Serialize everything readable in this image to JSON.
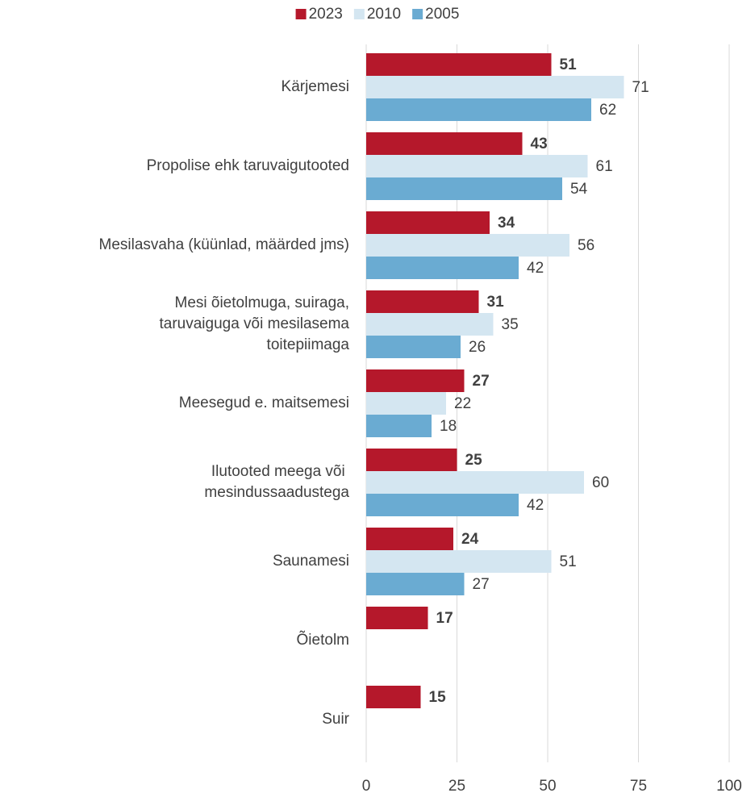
{
  "chart_data": {
    "type": "bar",
    "orientation": "horizontal",
    "categories": [
      "Kärjemesi",
      "Propolise ehk taruvaigutooted",
      "Mesilasvaha (küünlad, määrded jms)",
      "Mesi õietolmuga, suiraga,\ntaruvaiguga või mesilasema\ntoitepiimaga",
      "Meesegud e. maitsemesi",
      "Ilutooted meega või \nmesindussaadustega",
      "Saunamesi",
      "Õietolm",
      "Suir"
    ],
    "series": [
      {
        "name": "2023",
        "color": "#b5182b",
        "values": [
          51,
          43,
          34,
          31,
          27,
          25,
          24,
          17,
          15
        ]
      },
      {
        "name": "2010",
        "color": "#d4e6f1",
        "values": [
          71,
          61,
          56,
          35,
          22,
          60,
          51,
          null,
          null
        ]
      },
      {
        "name": "2005",
        "color": "#6aabd2",
        "values": [
          62,
          54,
          42,
          26,
          18,
          42,
          27,
          null,
          null
        ]
      }
    ],
    "xlim": [
      0,
      100
    ],
    "xticks": [
      0,
      25,
      50,
      75,
      100
    ],
    "grid": true,
    "legend": "top"
  }
}
